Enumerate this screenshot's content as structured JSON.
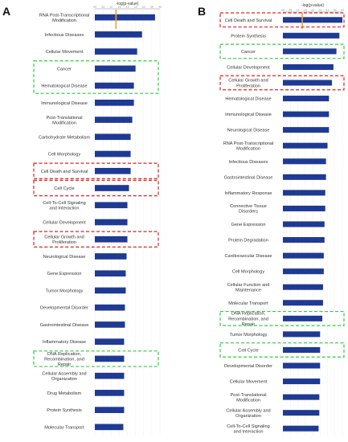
{
  "panels": [
    {
      "letter": "A",
      "chart_data": {
        "type": "bar",
        "orientation": "horizontal",
        "xlabel": "-log(p-value)",
        "xticks": [
          "0.0",
          "0.5",
          "1.0",
          "1.5",
          "2.0",
          "2.5",
          "3.0",
          "3.5",
          "4.0"
        ],
        "xlim": [
          0,
          4
        ],
        "threshold": 1.3,
        "bar_color": "#1f3a93",
        "threshold_color": "#f0a030",
        "categories": [
          "RNA Post-Transcriptional Modification",
          "Infectious Diseases",
          "Cellular Movement",
          "Cancer",
          "Hematological Disease",
          "Immunological Disease",
          "Post-Translational Modification",
          "Carbohydrate Metabolism",
          "Cell Morphology",
          "Cell Death and Survival",
          "Cell Cycle",
          "Cell-To-Cell Signaling and Interaction",
          "Cellular Development",
          "Cellular Growth and Proliferation",
          "Neurological Disease",
          "Gene Expression",
          "Tumor Morphology",
          "Developmental Disorder",
          "Gastrointestinal Disease",
          "Inflammatory Disease",
          "DNA Replication, Recombination, and Repair",
          "Cellular Assembly and Organization",
          "Drug Metabolism",
          "Protein Synthesis",
          "Molecular Transport"
        ],
        "values": [
          3.7,
          2.9,
          2.6,
          2.5,
          2.4,
          2.4,
          2.3,
          2.2,
          2.2,
          2.2,
          2.1,
          2.0,
          2.0,
          2.0,
          1.95,
          1.9,
          1.9,
          1.85,
          1.85,
          1.8,
          1.8,
          1.8,
          1.8,
          1.8,
          1.75
        ],
        "highlights": [
          {
            "from": 3,
            "to": 4,
            "color": "#2ecc40"
          },
          {
            "from": 9,
            "to": 9,
            "color": "#e02020"
          },
          {
            "from": 10,
            "to": 10,
            "color": "#e02020"
          },
          {
            "from": 13,
            "to": 13,
            "color": "#e02020"
          },
          {
            "from": 20,
            "to": 20,
            "color": "#2ecc40"
          }
        ]
      }
    },
    {
      "letter": "B",
      "chart_data": {
        "type": "bar",
        "orientation": "horizontal",
        "xlabel": "-log(p-value)",
        "xticks": [
          "0.0",
          "0.5",
          "1.0",
          "1.5",
          "2.0",
          "2.5",
          "3.0",
          "3.5",
          "4.0"
        ],
        "xlim": [
          0,
          4
        ],
        "threshold": 1.3,
        "bar_color": "#1f3a93",
        "threshold_color": "#f0a030",
        "categories": [
          "Cell Death and Survival",
          "Protein Synthesis",
          "Cancer",
          "Cellular Development",
          "Cellular Growth and Proliferation",
          "Hematological Disease",
          "Immunological Disease",
          "Neurological Disease",
          "RNA Post-Transcriptional Modification",
          "Infectious Diseases",
          "Gastrointestinal Disease",
          "Inflammatory Response",
          "Connective Tissue Disorders",
          "Gene Expression",
          "Protein Degradation",
          "Cardiovascular Disease",
          "Cell Morphology",
          "Cellular Function and Maintenance",
          "Molecular Transport",
          "DNA Replication, Recombination, and Repair",
          "Tumor Morphology",
          "Cell Cycle",
          "Developmental Disorder",
          "Cellular Movement",
          "Post-Translational Modification",
          "Cellular Assembly and Organization",
          "Cell-To-Cell Signaling and Interaction"
        ],
        "values": [
          4.0,
          3.8,
          3.6,
          3.4,
          3.3,
          3.1,
          3.1,
          3.1,
          3.0,
          2.9,
          2.9,
          2.85,
          2.85,
          2.8,
          2.8,
          2.75,
          2.75,
          2.7,
          2.7,
          2.65,
          2.5,
          2.5,
          2.5,
          2.5,
          2.45,
          2.45,
          2.4
        ],
        "highlights": [
          {
            "from": 0,
            "to": 0,
            "color": "#e02020"
          },
          {
            "from": 2,
            "to": 2,
            "color": "#2ecc40"
          },
          {
            "from": 4,
            "to": 4,
            "color": "#e02020"
          },
          {
            "from": 19,
            "to": 19,
            "color": "#2ecc40"
          },
          {
            "from": 21,
            "to": 21,
            "color": "#2ecc40"
          }
        ]
      }
    }
  ]
}
